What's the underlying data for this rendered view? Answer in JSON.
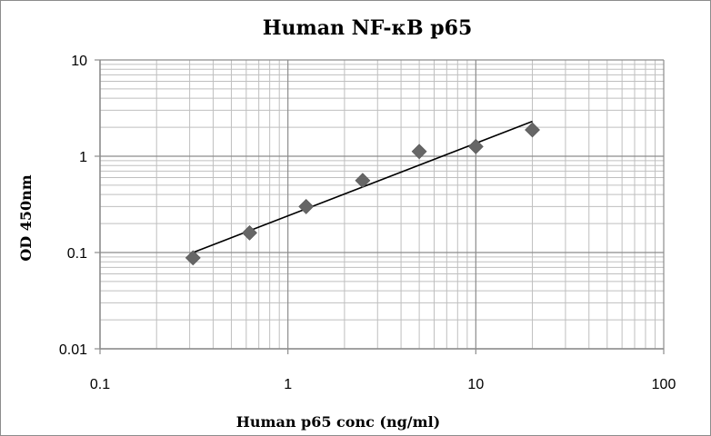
{
  "chart_data": {
    "type": "scatter",
    "title": "Human NF-κB p65",
    "xlabel": "Human p65 conc (ng/ml)",
    "ylabel": "OD 450nm",
    "xscale": "log",
    "yscale": "log",
    "xlim": [
      0.1,
      100
    ],
    "ylim": [
      0.01,
      10
    ],
    "x_tick_labels": [
      "0.1",
      "1",
      "10",
      "100"
    ],
    "y_tick_labels": [
      "0.01",
      "0.1",
      "1",
      "10"
    ],
    "grid": true,
    "legend": "none",
    "marker": "diamond",
    "marker_color": "#666666",
    "trendline": "power",
    "trendline_color": "#000000",
    "grid_major_color": "#8c8c8c",
    "grid_minor_color": "#bfbfbf",
    "points": [
      {
        "x": 0.3125,
        "y": 0.088
      },
      {
        "x": 0.625,
        "y": 0.16
      },
      {
        "x": 1.25,
        "y": 0.3
      },
      {
        "x": 2.5,
        "y": 0.56
      },
      {
        "x": 5,
        "y": 1.12
      },
      {
        "x": 10,
        "y": 1.26
      },
      {
        "x": 20,
        "y": 1.88
      }
    ],
    "trendline_endpoints": [
      {
        "x": 0.3125,
        "y": 0.1
      },
      {
        "x": 20,
        "y": 2.3
      }
    ]
  }
}
